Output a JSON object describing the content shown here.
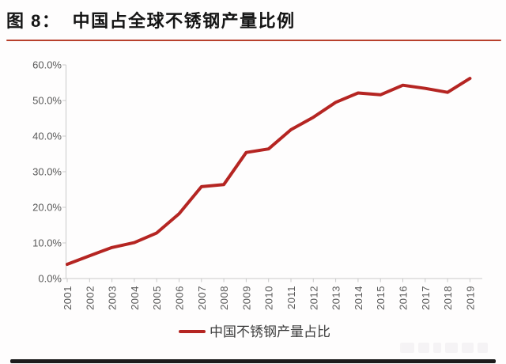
{
  "header": {
    "title": "图 8：  中国占全球不锈钢产量比例",
    "underline_color": "#b8402c"
  },
  "chart_data": {
    "type": "line",
    "title": "中国占全球不锈钢产量比例",
    "categories": [
      "2001",
      "2002",
      "2003",
      "2004",
      "2005",
      "2006",
      "2007",
      "2008",
      "2009",
      "2010",
      "2011",
      "2012",
      "2013",
      "2014",
      "2015",
      "2016",
      "2017",
      "2018",
      "2019"
    ],
    "series": [
      {
        "name": "中国不锈钢产量占比",
        "color": "#b52522",
        "values": [
          4.0,
          6.4,
          8.7,
          10.1,
          12.8,
          18.2,
          25.8,
          26.4,
          35.4,
          36.4,
          41.8,
          45.3,
          49.5,
          52.1,
          51.6,
          54.3,
          53.4,
          52.3,
          56.2
        ]
      }
    ],
    "ylim": [
      0,
      60
    ],
    "y_tick_labels": [
      "0.0%",
      "10.0%",
      "20.0%",
      "30.0%",
      "40.0%",
      "50.0%",
      "60.0%"
    ],
    "xlabel": "",
    "ylabel": "",
    "grid": false,
    "legend_position": "bottom",
    "axis_label_color": "#595959",
    "axis_line_color": "#c9c9c9"
  }
}
